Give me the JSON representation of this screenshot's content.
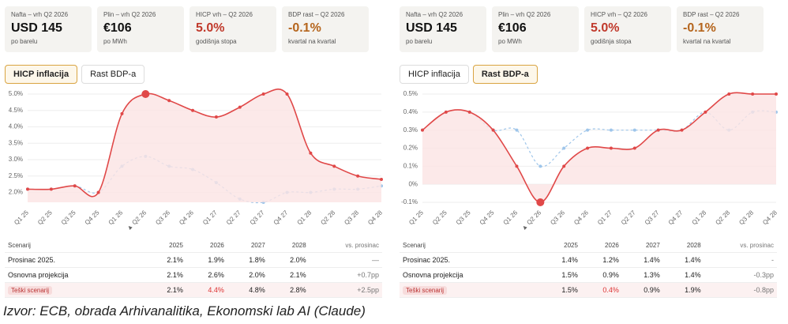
{
  "panels": [
    {
      "cards": [
        {
          "label": "Nafta – vrh Q2 2026",
          "value": "USD 145",
          "note": "po barelu"
        },
        {
          "label": "Plin – vrh Q2 2026",
          "value": "€106",
          "note": "po MWh"
        },
        {
          "label": "HICP vrh – Q2 2026",
          "value": "5.0%",
          "note": "godišnja stopa"
        },
        {
          "label": "BDP rast – Q2 2026",
          "value": "-0.1%",
          "note": "kvartal na kvartal"
        }
      ],
      "tabs": [
        "HICP inflacija",
        "Rast BDP-a"
      ],
      "active_tab": 0,
      "table": {
        "header": [
          "Scenarij",
          "2025",
          "2026",
          "2027",
          "2028",
          "vs. prosinac"
        ],
        "rows": [
          [
            "Prosinac 2025.",
            "2.1%",
            "1.9%",
            "1.8%",
            "2.0%",
            "—"
          ],
          [
            "Osnovna projekcija",
            "2.1%",
            "2.6%",
            "2.0%",
            "2.1%",
            "+0.7pp"
          ],
          [
            "Teški scenarij",
            "2.1%",
            "4.4%",
            "4.8%",
            "2.8%",
            "+2.5pp"
          ]
        ]
      }
    },
    {
      "cards": [
        {
          "label": "Nafta – vrh Q2 2026",
          "value": "USD 145",
          "note": "po barelu"
        },
        {
          "label": "Plin – vrh Q2 2026",
          "value": "€106",
          "note": "po MWh"
        },
        {
          "label": "HICP vrh – Q2 2026",
          "value": "5.0%",
          "note": "godišnja stopa"
        },
        {
          "label": "BDP rast – Q2 2026",
          "value": "-0.1%",
          "note": "kvartal na kvartal"
        }
      ],
      "tabs": [
        "HICP inflacija",
        "Rast BDP-a"
      ],
      "active_tab": 1,
      "table": {
        "header": [
          "Scenarij",
          "2025",
          "2026",
          "2027",
          "2028",
          "vs. prosinac"
        ],
        "rows": [
          [
            "Prosinac 2025.",
            "1.4%",
            "1.2%",
            "1.4%",
            "1.4%",
            "-"
          ],
          [
            "Osnovna projekcija",
            "1.5%",
            "0.9%",
            "1.3%",
            "1.4%",
            "-0.3pp"
          ],
          [
            "Teški scenarij",
            "1.5%",
            "0.4%",
            "0.9%",
            "1.9%",
            "-0.8pp"
          ]
        ]
      }
    }
  ],
  "chart_data": [
    {
      "type": "line",
      "categories": [
        "Q1 25",
        "Q2 25",
        "Q3 25",
        "Q4 25",
        "Q1 26",
        "▲ Q2 26",
        "Q3 26",
        "Q4 26",
        "Q1 27",
        "Q2 27",
        "Q3 27",
        "Q4 27",
        "Q1 28",
        "Q2 28",
        "Q3 28",
        "Q4 28"
      ],
      "series": [
        {
          "color": "#9ec5ea",
          "dashed": true,
          "values": [
            2.1,
            2.1,
            2.2,
            2.0,
            2.8,
            3.1,
            2.8,
            2.7,
            2.3,
            1.8,
            1.7,
            2.0,
            2.0,
            2.1,
            2.1,
            2.2
          ]
        },
        {
          "color": "#e04848",
          "fill": "#fbe3e3",
          "values": [
            2.1,
            2.1,
            2.2,
            2.0,
            4.4,
            5.0,
            4.8,
            4.5,
            4.3,
            4.6,
            5.0,
            5.0,
            3.2,
            2.8,
            2.5,
            2.4
          ]
        }
      ],
      "ylim": [
        1.7,
        5.0
      ],
      "yticks": [
        {
          "value": 2.0,
          "label": "2.0%"
        },
        {
          "value": 2.5,
          "label": "2.5%"
        },
        {
          "value": 3.0,
          "label": "3.0%"
        },
        {
          "value": 3.5,
          "label": "3.5%"
        },
        {
          "value": 4.0,
          "label": "4.0%"
        },
        {
          "value": 4.5,
          "label": "4.5%"
        },
        {
          "value": 5.0,
          "label": "5.0%"
        }
      ],
      "grid": true
    },
    {
      "type": "line",
      "categories": [
        "Q1 25",
        "Q2 25",
        "Q3 25",
        "Q4 25",
        "Q1 26",
        "▲ Q2 26",
        "Q3 26",
        "Q4 26",
        "Q1 27",
        "Q2 27",
        "Q3 27",
        "Q4 27",
        "Q1 28",
        "Q2 28",
        "Q3 28",
        "Q4 28"
      ],
      "series": [
        {
          "color": "#9ec5ea",
          "dashed": true,
          "values": [
            0.3,
            0.4,
            0.4,
            0.3,
            0.3,
            0.1,
            0.2,
            0.3,
            0.3,
            0.3,
            0.3,
            0.3,
            0.4,
            0.3,
            0.4,
            0.4
          ]
        },
        {
          "color": "#e04848",
          "fill": "#fbe3e3",
          "values": [
            0.3,
            0.4,
            0.4,
            0.3,
            0.1,
            -0.1,
            0.1,
            0.2,
            0.2,
            0.2,
            0.3,
            0.3,
            0.4,
            0.5,
            0.5,
            0.5
          ]
        }
      ],
      "ylim": [
        -0.1,
        0.5
      ],
      "yticks": [
        {
          "value": -0.1,
          "label": "-0.1%"
        },
        {
          "value": 0,
          "label": "0%"
        },
        {
          "value": 0.1,
          "label": "0.1%"
        },
        {
          "value": 0.2,
          "label": "0.2%"
        },
        {
          "value": 0.3,
          "label": "0.3%"
        },
        {
          "value": 0.4,
          "label": "0.4%"
        },
        {
          "value": 0.5,
          "label": "0.5%"
        }
      ],
      "grid": true
    }
  ],
  "caption": "Izvor: ECB, obrada Arhivanalitika, Ekonomski lab AI (Claude)"
}
